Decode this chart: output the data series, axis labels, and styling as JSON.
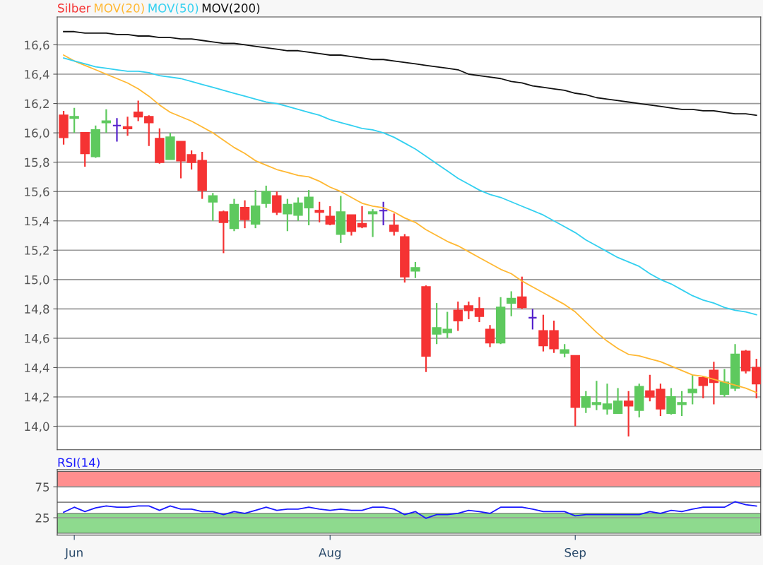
{
  "chart_data": [
    {
      "type": "candlestick",
      "categories": [
        null,
        null,
        null,
        null,
        null,
        null,
        null,
        null,
        null,
        null,
        null,
        null,
        null,
        null,
        null,
        null,
        null,
        null,
        null,
        null,
        null,
        null,
        null,
        null,
        null,
        null,
        null,
        null,
        null,
        null,
        null,
        null,
        null,
        null,
        null,
        null,
        null,
        null,
        null,
        null,
        null,
        null,
        null,
        null,
        null,
        null,
        null,
        null,
        null,
        null,
        null,
        null,
        null,
        null,
        null,
        null,
        null,
        null,
        null,
        null,
        null,
        null,
        null,
        null,
        null,
        null
      ],
      "ylim": [
        13.84,
        16.79
      ],
      "yticks": [
        {
          "value": 14.0,
          "label": "14,0"
        },
        {
          "value": 14.2,
          "label": "14,2"
        },
        {
          "value": 14.4,
          "label": "14,4"
        },
        {
          "value": 14.6,
          "label": "14,6"
        },
        {
          "value": 14.8,
          "label": "14,8"
        },
        {
          "value": 15.0,
          "label": "15,0"
        },
        {
          "value": 15.2,
          "label": "15,2"
        },
        {
          "value": 15.4,
          "label": "15,4"
        },
        {
          "value": 15.6,
          "label": "15,6"
        },
        {
          "value": 15.8,
          "label": "15,8"
        },
        {
          "value": 16.0,
          "label": "16,0"
        },
        {
          "value": 16.2,
          "label": "16,2"
        },
        {
          "value": 16.4,
          "label": "16,4"
        },
        {
          "value": 16.6,
          "label": "16,6"
        }
      ],
      "grid": "y",
      "legend": "top left",
      "tick_labels": "y",
      "series": [
        {
          "name": "Silber",
          "color": "#f53333",
          "colors": [
            "#f53333",
            "#5ec95e",
            "#f53333",
            "#5ec95e",
            "#5ec95e",
            "#5522cc",
            "#f53333",
            "#f53333",
            "#f53333",
            "#f53333",
            "#5ec95e",
            "#f53333",
            "#f53333",
            "#f53333",
            "#5ec95e",
            "#f53333",
            "#5ec95e",
            "#f53333",
            "#5ec95e",
            "#5ec95e",
            "#f53333",
            "#5ec95e",
            "#5ec95e",
            "#5ec95e",
            "#f53333",
            "#f53333",
            "#5ec95e",
            "#f53333",
            "#f53333",
            "#5ec95e",
            "#5522cc",
            "#f53333",
            "#f53333",
            "#5ec95e",
            "#f53333",
            "#5ec95e",
            "#5ec95e",
            "#f53333",
            "#f53333",
            "#f53333",
            "#f53333",
            "#5ec95e",
            "#5ec95e",
            "#f53333",
            "#5522cc",
            "#f53333",
            "#f53333",
            "#5ec95e",
            "#f53333",
            "#5ec95e",
            "#5ec95e",
            "#5ec95e",
            "#5ec95e",
            "#f53333",
            "#5ec95e",
            "#f53333",
            "#f53333",
            "#5ec95e",
            "#5ec95e",
            "#5ec95e",
            "#f53333",
            "#f53333",
            "#5ec95e",
            "#5ec95e",
            "#f53333",
            "#f53333"
          ],
          "ohlc": [
            [
              16.12,
              16.15,
              15.92,
              15.97
            ],
            [
              16.1,
              16.17,
              16.0,
              16.11
            ],
            [
              16.0,
              16.0,
              15.77,
              15.86
            ],
            [
              15.84,
              16.05,
              15.83,
              16.02
            ],
            [
              16.07,
              16.16,
              16.0,
              16.08
            ],
            [
              16.05,
              16.1,
              15.94,
              16.05
            ],
            [
              16.04,
              16.11,
              15.98,
              16.03
            ],
            [
              16.14,
              16.22,
              16.08,
              16.11
            ],
            [
              16.11,
              16.12,
              15.91,
              16.07
            ],
            [
              15.96,
              16.03,
              15.79,
              15.8
            ],
            [
              15.82,
              16.0,
              15.82,
              15.97
            ],
            [
              15.94,
              15.94,
              15.69,
              15.81
            ],
            [
              15.85,
              15.88,
              15.75,
              15.8
            ],
            [
              15.81,
              15.87,
              15.55,
              15.61
            ],
            [
              15.53,
              15.59,
              15.4,
              15.57
            ],
            [
              15.46,
              15.47,
              15.18,
              15.39
            ],
            [
              15.35,
              15.55,
              15.33,
              15.51
            ],
            [
              15.49,
              15.54,
              15.35,
              15.41
            ],
            [
              15.38,
              15.61,
              15.35,
              15.5
            ],
            [
              15.52,
              15.64,
              15.49,
              15.6
            ],
            [
              15.57,
              15.6,
              15.44,
              15.46
            ],
            [
              15.45,
              15.55,
              15.33,
              15.51
            ],
            [
              15.44,
              15.56,
              15.4,
              15.52
            ],
            [
              15.49,
              15.61,
              15.37,
              15.56
            ],
            [
              15.47,
              15.53,
              15.39,
              15.46
            ],
            [
              15.43,
              15.5,
              15.37,
              15.38
            ],
            [
              15.31,
              15.57,
              15.25,
              15.46
            ],
            [
              15.44,
              15.44,
              15.3,
              15.33
            ],
            [
              15.38,
              15.5,
              15.35,
              15.36
            ],
            [
              15.45,
              15.48,
              15.29,
              15.46
            ],
            [
              15.47,
              15.53,
              15.37,
              15.47
            ],
            [
              15.37,
              15.45,
              15.3,
              15.33
            ],
            [
              15.29,
              15.31,
              14.98,
              15.02
            ],
            [
              15.06,
              15.12,
              15.01,
              15.08
            ],
            [
              14.95,
              14.96,
              14.37,
              14.48
            ],
            [
              14.63,
              14.84,
              14.56,
              14.67
            ],
            [
              14.64,
              14.78,
              14.6,
              14.66
            ],
            [
              14.79,
              14.85,
              14.65,
              14.72
            ],
            [
              14.82,
              14.85,
              14.73,
              14.79
            ],
            [
              14.8,
              14.88,
              14.71,
              14.75
            ],
            [
              14.66,
              14.69,
              14.54,
              14.57
            ],
            [
              14.57,
              14.88,
              14.56,
              14.81
            ],
            [
              14.84,
              14.92,
              14.75,
              14.87
            ],
            [
              14.88,
              15.02,
              14.8,
              14.81
            ],
            [
              14.74,
              14.8,
              14.66,
              14.74
            ],
            [
              14.65,
              14.76,
              14.51,
              14.55
            ],
            [
              14.65,
              14.72,
              14.5,
              14.53
            ],
            [
              14.5,
              14.56,
              14.47,
              14.52
            ],
            [
              14.48,
              14.48,
              14.0,
              14.13
            ],
            [
              14.13,
              14.24,
              14.09,
              14.2
            ],
            [
              14.15,
              14.31,
              14.11,
              14.16
            ],
            [
              14.12,
              14.29,
              14.08,
              14.15
            ],
            [
              14.09,
              14.26,
              14.09,
              14.17
            ],
            [
              14.17,
              14.24,
              13.93,
              14.14
            ],
            [
              14.11,
              14.29,
              14.06,
              14.27
            ],
            [
              14.24,
              14.35,
              14.17,
              14.2
            ],
            [
              14.25,
              14.29,
              14.07,
              14.12
            ],
            [
              14.09,
              14.26,
              14.08,
              14.2
            ],
            [
              14.15,
              14.24,
              14.07,
              14.16
            ],
            [
              14.23,
              14.35,
              14.15,
              14.25
            ],
            [
              14.33,
              14.34,
              14.19,
              14.28
            ],
            [
              14.38,
              14.44,
              14.15,
              14.3
            ],
            [
              14.22,
              14.39,
              14.2,
              14.3
            ],
            [
              14.26,
              14.56,
              14.24,
              14.49
            ],
            [
              14.51,
              14.52,
              14.36,
              14.38
            ],
            [
              14.4,
              14.46,
              14.19,
              14.29
            ]
          ]
        },
        {
          "type": "line",
          "name": "MOV(20)",
          "color": "#ffb833",
          "values": [
            16.53,
            16.49,
            16.46,
            16.43,
            16.4,
            16.37,
            16.34,
            16.3,
            16.25,
            16.19,
            16.14,
            16.11,
            16.08,
            16.04,
            16.0,
            15.95,
            15.9,
            15.86,
            15.81,
            15.78,
            15.75,
            15.73,
            15.71,
            15.7,
            15.67,
            15.63,
            15.6,
            15.56,
            15.52,
            15.5,
            15.49,
            15.46,
            15.42,
            15.39,
            15.34,
            15.3,
            15.26,
            15.23,
            15.19,
            15.15,
            15.11,
            15.07,
            15.04,
            14.99,
            14.95,
            14.91,
            14.87,
            14.83,
            14.78,
            14.71,
            14.64,
            14.58,
            14.53,
            14.49,
            14.48,
            14.46,
            14.44,
            14.41,
            14.38,
            14.35,
            14.34,
            14.32,
            14.3,
            14.28,
            14.26,
            14.23
          ]
        },
        {
          "type": "line",
          "name": "MOV(50)",
          "color": "#33d0f0",
          "values": [
            16.51,
            16.49,
            16.47,
            16.45,
            16.44,
            16.43,
            16.42,
            16.42,
            16.41,
            16.39,
            16.38,
            16.37,
            16.35,
            16.33,
            16.31,
            16.29,
            16.27,
            16.25,
            16.23,
            16.21,
            16.2,
            16.18,
            16.16,
            16.14,
            16.12,
            16.09,
            16.07,
            16.05,
            16.03,
            16.02,
            16.0,
            15.97,
            15.93,
            15.89,
            15.84,
            15.79,
            15.74,
            15.69,
            15.65,
            15.61,
            15.58,
            15.56,
            15.53,
            15.5,
            15.47,
            15.44,
            15.4,
            15.36,
            15.32,
            15.27,
            15.23,
            15.19,
            15.15,
            15.12,
            15.09,
            15.04,
            15.0,
            14.97,
            14.93,
            14.89,
            14.86,
            14.84,
            14.81,
            14.79,
            14.78,
            14.76
          ]
        },
        {
          "type": "line",
          "name": "MOV(200)",
          "color": "#111111",
          "values": [
            16.69,
            16.69,
            16.68,
            16.68,
            16.68,
            16.67,
            16.67,
            16.66,
            16.66,
            16.65,
            16.65,
            16.64,
            16.64,
            16.63,
            16.62,
            16.61,
            16.61,
            16.6,
            16.59,
            16.58,
            16.57,
            16.56,
            16.56,
            16.55,
            16.54,
            16.53,
            16.53,
            16.52,
            16.51,
            16.5,
            16.5,
            16.49,
            16.48,
            16.47,
            16.46,
            16.45,
            16.44,
            16.43,
            16.4,
            16.39,
            16.38,
            16.37,
            16.35,
            16.34,
            16.32,
            16.31,
            16.3,
            16.29,
            16.27,
            16.26,
            16.24,
            16.23,
            16.22,
            16.21,
            16.2,
            16.19,
            16.18,
            16.17,
            16.16,
            16.16,
            16.15,
            16.15,
            16.14,
            16.13,
            16.13,
            16.12
          ]
        }
      ]
    },
    {
      "type": "line",
      "categories": [
        null,
        "Jun",
        null,
        null,
        null,
        null,
        null,
        null,
        null,
        null,
        null,
        null,
        null,
        null,
        null,
        null,
        null,
        null,
        null,
        null,
        null,
        null,
        null,
        null,
        null,
        "Aug",
        null,
        null,
        null,
        null,
        null,
        null,
        null,
        null,
        null,
        null,
        null,
        null,
        null,
        null,
        null,
        null,
        null,
        null,
        null,
        null,
        null,
        null,
        "Sep",
        null,
        null,
        null,
        null,
        null,
        null,
        null,
        null,
        null,
        null,
        null,
        null,
        null,
        null,
        null,
        null,
        null
      ],
      "ylim": [
        -3,
        103
      ],
      "yticks": [
        25,
        75
      ],
      "grid": "y",
      "legend": "top left",
      "bands": [
        {
          "axis": "y",
          "from": 75,
          "to": 100,
          "color": "#ff8888"
        },
        {
          "axis": "y",
          "from": 0,
          "to": 32,
          "color": "#88d888"
        }
      ],
      "ref_lines": [
        {
          "axis": "y",
          "value": 50,
          "color": "#888888"
        }
      ],
      "series": [
        {
          "name": "RSI(14)",
          "color": "#1a1aff",
          "values": [
            34,
            42,
            35,
            41,
            44,
            42,
            42,
            44,
            44,
            37,
            44,
            39,
            39,
            35,
            35,
            30,
            35,
            32,
            37,
            42,
            37,
            39,
            39,
            42,
            39,
            37,
            39,
            37,
            37,
            42,
            42,
            39,
            30,
            35,
            24,
            30,
            30,
            32,
            37,
            35,
            32,
            42,
            42,
            42,
            39,
            35,
            35,
            35,
            28,
            30,
            30,
            30,
            30,
            30,
            30,
            35,
            32,
            37,
            35,
            39,
            42,
            42,
            42,
            51,
            46,
            44
          ]
        }
      ]
    }
  ]
}
